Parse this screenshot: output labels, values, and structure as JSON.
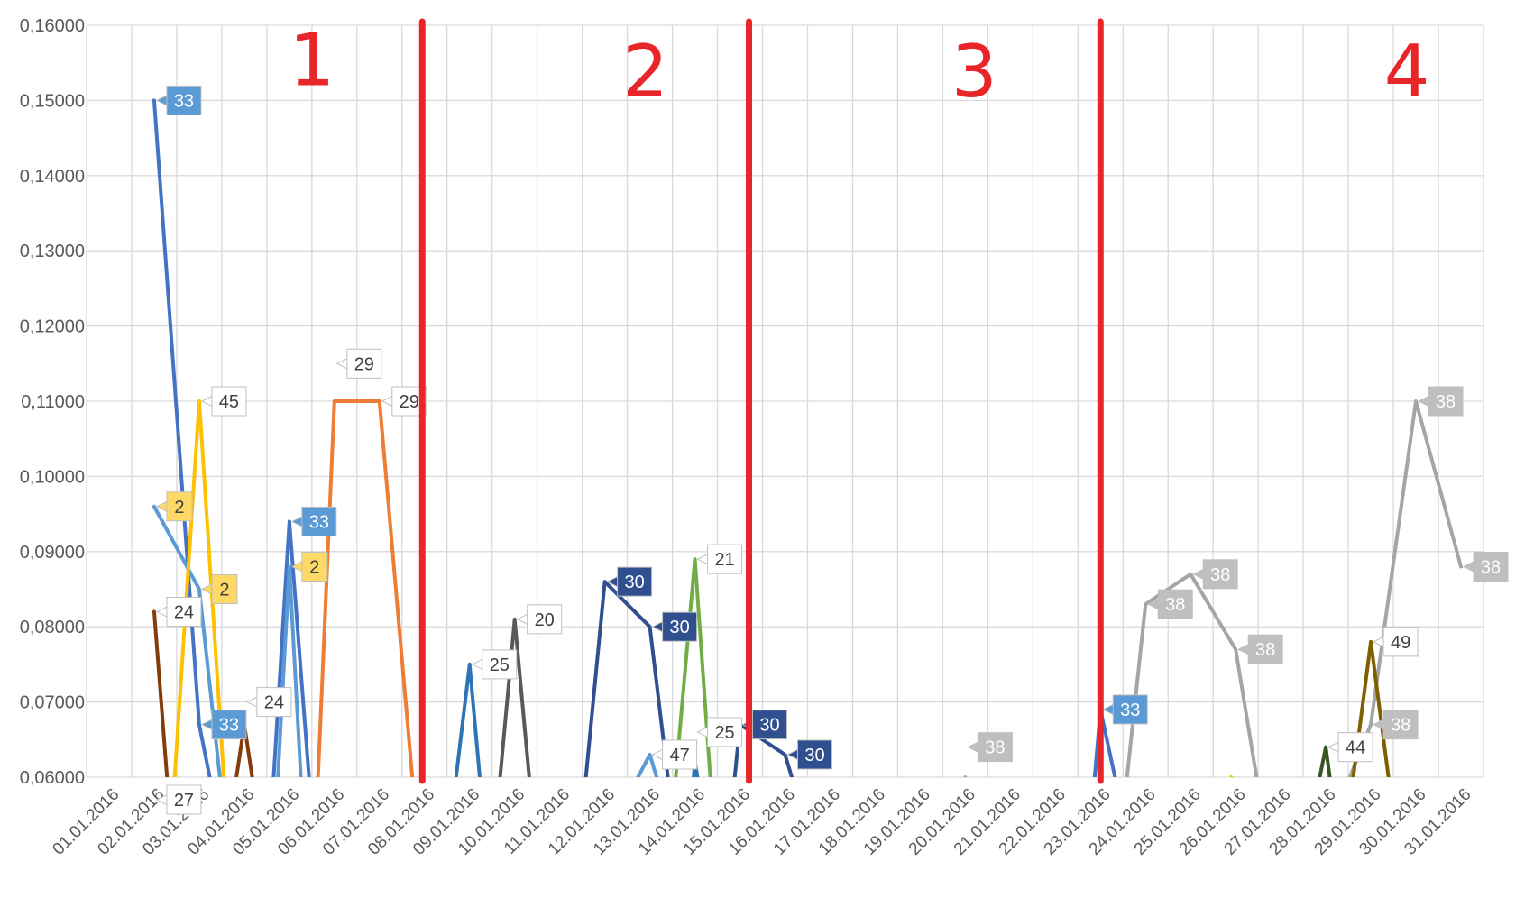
{
  "chart_data": {
    "type": "line",
    "title": "",
    "xlabel": "",
    "ylabel": "",
    "ylim": [
      0.06,
      0.16
    ],
    "yticks": [
      "0,06000",
      "0,07000",
      "0,08000",
      "0,09000",
      "0,10000",
      "0,11000",
      "0,12000",
      "0,13000",
      "0,14000",
      "0,15000",
      "0,16000"
    ],
    "categories": [
      "01.01.2016",
      "02.01.2016",
      "03.01.2016",
      "04.01.2016",
      "05.01.2016",
      "06.01.2016",
      "07.01.2016",
      "08.01.2016",
      "09.01.2016",
      "10.01.2016",
      "11.01.2016",
      "12.01.2016",
      "13.01.2016",
      "14.01.2016",
      "15.01.2016",
      "16.01.2016",
      "17.01.2016",
      "18.01.2016",
      "19.01.2016",
      "20.01.2016",
      "21.01.2016",
      "22.01.2016",
      "23.01.2016",
      "24.01.2016",
      "25.01.2016",
      "26.01.2016",
      "27.01.2016",
      "28.01.2016",
      "29.01.2016",
      "30.01.2016",
      "31.01.2016"
    ],
    "grid": true,
    "legend": "none",
    "series": [
      {
        "color": "#4472c4",
        "points": [
          [
            1,
            0.15
          ],
          [
            2,
            0.067
          ],
          [
            2.4,
            0.055
          ]
        ]
      },
      {
        "color": "#5b9bd5",
        "points": [
          [
            1,
            0.096
          ],
          [
            2,
            0.085
          ],
          [
            2.55,
            0.055
          ]
        ]
      },
      {
        "color": "#ffc000",
        "points": [
          [
            1.4,
            0.055
          ],
          [
            2,
            0.11
          ],
          [
            2.6,
            0.055
          ]
        ]
      },
      {
        "color": "#843c0c",
        "points": [
          [
            1,
            0.082
          ],
          [
            1.35,
            0.055
          ]
        ]
      },
      {
        "color": "#f4b183",
        "points": [
          [
            0.6,
            0.058
          ],
          [
            1,
            0.057
          ],
          [
            1.2,
            0.055
          ]
        ]
      },
      {
        "color": "#843c0c",
        "points": [
          [
            2.7,
            0.055
          ],
          [
            3,
            0.067
          ],
          [
            3.3,
            0.055
          ]
        ]
      },
      {
        "color": "#4472c4",
        "points": [
          [
            3.6,
            0.055
          ],
          [
            4,
            0.094
          ],
          [
            4.5,
            0.055
          ]
        ]
      },
      {
        "color": "#5b9bd5",
        "points": [
          [
            3.7,
            0.055
          ],
          [
            4,
            0.088
          ],
          [
            4.3,
            0.055
          ]
        ]
      },
      {
        "color": "#ed7d31",
        "points": [
          [
            4.6,
            0.055
          ],
          [
            5,
            0.11
          ],
          [
            6,
            0.11
          ],
          [
            6.8,
            0.055
          ]
        ]
      },
      {
        "color": "#2e75b6",
        "points": [
          [
            7.6,
            0.055
          ],
          [
            8,
            0.075
          ],
          [
            8.3,
            0.055
          ]
        ]
      },
      {
        "color": "#595959",
        "points": [
          [
            8.6,
            0.055
          ],
          [
            9,
            0.081
          ],
          [
            9.4,
            0.055
          ]
        ]
      },
      {
        "color": "#2f4f8f",
        "points": [
          [
            10.5,
            0.055
          ],
          [
            11,
            0.086
          ],
          [
            12,
            0.08
          ],
          [
            12.5,
            0.055
          ]
        ]
      },
      {
        "color": "#5b9bd5",
        "points": [
          [
            11.3,
            0.055
          ],
          [
            12,
            0.063
          ],
          [
            12.4,
            0.055
          ]
        ]
      },
      {
        "color": "#70ad47",
        "points": [
          [
            12.5,
            0.055
          ],
          [
            13,
            0.089
          ],
          [
            13.4,
            0.055
          ]
        ]
      },
      {
        "color": "#2e75b6",
        "points": [
          [
            12.9,
            0.055
          ],
          [
            13,
            0.062
          ],
          [
            13.2,
            0.055
          ]
        ]
      },
      {
        "color": "#2f4f8f",
        "points": [
          [
            13.8,
            0.055
          ],
          [
            14,
            0.067
          ],
          [
            15,
            0.063
          ],
          [
            15.4,
            0.055
          ]
        ]
      },
      {
        "color": "#a5a5a5",
        "points": [
          [
            19,
            0.06
          ],
          [
            19.3,
            0.055
          ]
        ]
      },
      {
        "color": "#4472c4",
        "points": [
          [
            21.8,
            0.055
          ],
          [
            22,
            0.069
          ],
          [
            22.5,
            0.055
          ]
        ]
      },
      {
        "color": "#a5a5a5",
        "points": [
          [
            22.5,
            0.055
          ],
          [
            23,
            0.083
          ],
          [
            24,
            0.087
          ],
          [
            25,
            0.077
          ],
          [
            25.6,
            0.055
          ]
        ]
      },
      {
        "color": "#ffc000",
        "points": [
          [
            24.9,
            0.06
          ],
          [
            25.1,
            0.058
          ]
        ]
      },
      {
        "color": "#375623",
        "points": [
          [
            26.7,
            0.055
          ],
          [
            27,
            0.064
          ],
          [
            27.2,
            0.055
          ]
        ]
      },
      {
        "color": "#a5a5a5",
        "points": [
          [
            27.2,
            0.055
          ],
          [
            28,
            0.067
          ],
          [
            29,
            0.11
          ],
          [
            30,
            0.088
          ]
        ]
      },
      {
        "color": "#7f6000",
        "points": [
          [
            27.5,
            0.055
          ],
          [
            28,
            0.078
          ],
          [
            28.5,
            0.055
          ]
        ]
      }
    ],
    "data_labels": [
      {
        "x": 1,
        "y": 0.15,
        "text": "33",
        "bg": "#5b9bd5",
        "fg": "#ffffff"
      },
      {
        "x": 1,
        "y": 0.096,
        "text": "2",
        "bg": "#ffd966",
        "fg": "#404040"
      },
      {
        "x": 1,
        "y": 0.082,
        "text": "24",
        "bg": "#ffffff",
        "fg": "#404040"
      },
      {
        "x": 1,
        "y": 0.057,
        "text": "27",
        "bg": "#ffffff",
        "fg": "#404040"
      },
      {
        "x": 2,
        "y": 0.11,
        "text": "45",
        "bg": "#ffffff",
        "fg": "#404040"
      },
      {
        "x": 2,
        "y": 0.085,
        "text": "2",
        "bg": "#ffd966",
        "fg": "#404040"
      },
      {
        "x": 2,
        "y": 0.067,
        "text": "33",
        "bg": "#5b9bd5",
        "fg": "#ffffff"
      },
      {
        "x": 3,
        "y": 0.07,
        "text": "24",
        "bg": "#ffffff",
        "fg": "#404040"
      },
      {
        "x": 4,
        "y": 0.094,
        "text": "33",
        "bg": "#5b9bd5",
        "fg": "#ffffff"
      },
      {
        "x": 4,
        "y": 0.088,
        "text": "2",
        "bg": "#ffd966",
        "fg": "#404040"
      },
      {
        "x": 5,
        "y": 0.115,
        "text": "29",
        "bg": "#ffffff",
        "fg": "#404040"
      },
      {
        "x": 6,
        "y": 0.11,
        "text": "29",
        "bg": "#ffffff",
        "fg": "#404040"
      },
      {
        "x": 8,
        "y": 0.075,
        "text": "25",
        "bg": "#ffffff",
        "fg": "#404040"
      },
      {
        "x": 9,
        "y": 0.081,
        "text": "20",
        "bg": "#ffffff",
        "fg": "#404040"
      },
      {
        "x": 11,
        "y": 0.086,
        "text": "30",
        "bg": "#2f4f8f",
        "fg": "#ffffff"
      },
      {
        "x": 12,
        "y": 0.08,
        "text": "30",
        "bg": "#2f4f8f",
        "fg": "#ffffff"
      },
      {
        "x": 12,
        "y": 0.063,
        "text": "47",
        "bg": "#ffffff",
        "fg": "#404040"
      },
      {
        "x": 13,
        "y": 0.089,
        "text": "21",
        "bg": "#ffffff",
        "fg": "#404040"
      },
      {
        "x": 13,
        "y": 0.066,
        "text": "25",
        "bg": "#ffffff",
        "fg": "#404040"
      },
      {
        "x": 14,
        "y": 0.067,
        "text": "30",
        "bg": "#2f4f8f",
        "fg": "#ffffff"
      },
      {
        "x": 15,
        "y": 0.063,
        "text": "30",
        "bg": "#2f4f8f",
        "fg": "#ffffff"
      },
      {
        "x": 19,
        "y": 0.064,
        "text": "38",
        "bg": "#bfbfbf",
        "fg": "#ffffff"
      },
      {
        "x": 22,
        "y": 0.069,
        "text": "33",
        "bg": "#5b9bd5",
        "fg": "#ffffff"
      },
      {
        "x": 23,
        "y": 0.083,
        "text": "38",
        "bg": "#bfbfbf",
        "fg": "#ffffff"
      },
      {
        "x": 24,
        "y": 0.087,
        "text": "38",
        "bg": "#bfbfbf",
        "fg": "#ffffff"
      },
      {
        "x": 25,
        "y": 0.077,
        "text": "38",
        "bg": "#bfbfbf",
        "fg": "#ffffff"
      },
      {
        "x": 27,
        "y": 0.064,
        "text": "44",
        "bg": "#ffffff",
        "fg": "#404040"
      },
      {
        "x": 28,
        "y": 0.078,
        "text": "49",
        "bg": "#ffffff",
        "fg": "#404040"
      },
      {
        "x": 28,
        "y": 0.067,
        "text": "38",
        "bg": "#bfbfbf",
        "fg": "#ffffff"
      },
      {
        "x": 29,
        "y": 0.11,
        "text": "38",
        "bg": "#bfbfbf",
        "fg": "#ffffff"
      },
      {
        "x": 30,
        "y": 0.088,
        "text": "38",
        "bg": "#bfbfbf",
        "fg": "#ffffff"
      }
    ],
    "annotations": {
      "color": "#e8262a",
      "dividers": [
        6.95,
        14.2,
        22.0
      ],
      "section_marks": [
        {
          "x": 4.5,
          "y": 0.152,
          "text": "1"
        },
        {
          "x": 11.9,
          "y": 0.1505,
          "text": "2"
        },
        {
          "x": 19.2,
          "y": 0.1505,
          "text": "3"
        },
        {
          "x": 28.8,
          "y": 0.1505,
          "text": "4"
        }
      ]
    }
  }
}
